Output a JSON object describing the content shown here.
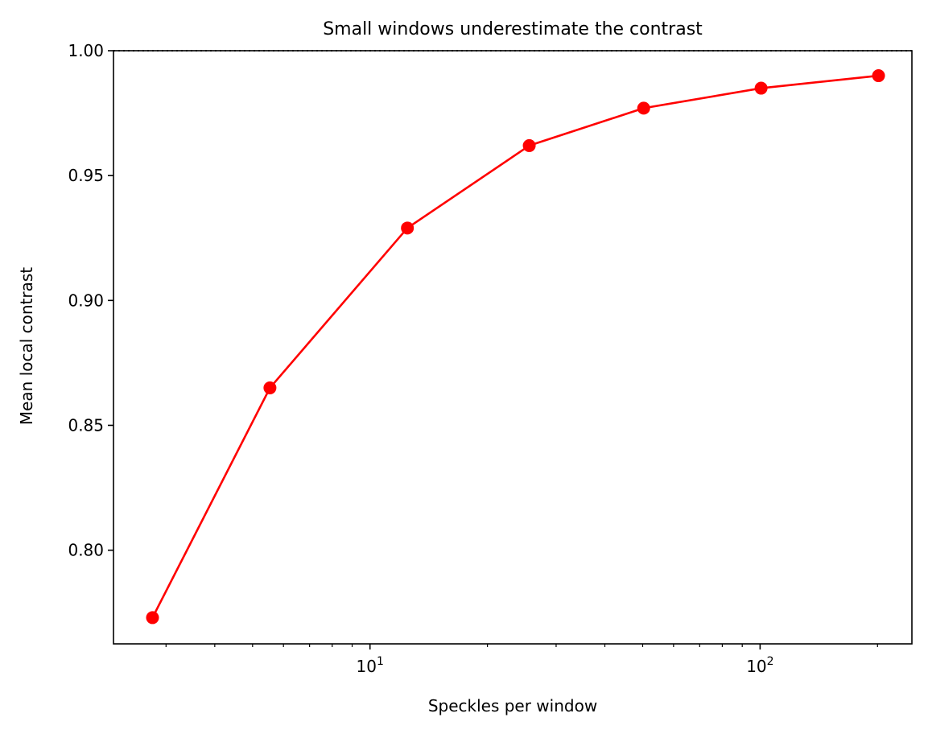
{
  "chart_data": {
    "type": "line",
    "title": "Small windows underestimate the contrast",
    "xlabel": "Speckles per window",
    "ylabel": "Mean local contrast",
    "xscale": "log",
    "xlim": [
      2.2,
      245
    ],
    "ylim": [
      0.7625,
      1.0
    ],
    "xticks_major": [
      {
        "value": 10,
        "base": "10",
        "exponent": "1"
      },
      {
        "value": 100,
        "base": "10",
        "exponent": "2"
      }
    ],
    "yticks": [
      {
        "value": 0.8,
        "label": "0.80"
      },
      {
        "value": 0.85,
        "label": "0.85"
      },
      {
        "value": 0.9,
        "label": "0.90"
      },
      {
        "value": 0.95,
        "label": "0.95"
      },
      {
        "value": 1.0,
        "label": "1.00"
      }
    ],
    "grid": false,
    "reference_line": {
      "y": 1.0,
      "style": "dotted",
      "color": "#000000"
    },
    "series": [
      {
        "color": "#ff0000",
        "marker": "circle",
        "points": [
          {
            "x": 2.77,
            "y": 0.773
          },
          {
            "x": 5.54,
            "y": 0.865
          },
          {
            "x": 12.47,
            "y": 0.929
          },
          {
            "x": 25.6,
            "y": 0.962
          },
          {
            "x": 50.3,
            "y": 0.977
          },
          {
            "x": 100.6,
            "y": 0.985
          },
          {
            "x": 201.2,
            "y": 0.99
          }
        ]
      }
    ]
  }
}
